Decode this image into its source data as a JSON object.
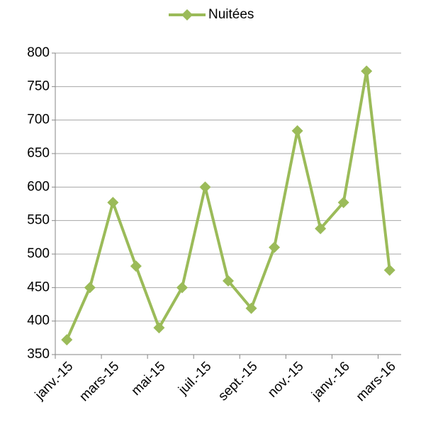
{
  "chart_data": {
    "type": "line",
    "categories": [
      "janv.-15",
      null,
      "mars-15",
      null,
      "mai-15",
      null,
      "juil.-15",
      null,
      "sept.-15",
      null,
      "nov.-15",
      null,
      "janv.-16",
      null,
      "mars-16"
    ],
    "series": [
      {
        "name": "Nuitées",
        "color": "#9bbb59",
        "values": [
          372,
          450,
          577,
          482,
          390,
          450,
          600,
          460,
          419,
          510,
          684,
          538,
          577,
          773,
          476
        ]
      }
    ],
    "ylim": [
      350,
      800
    ],
    "yticks": [
      350,
      400,
      450,
      500,
      550,
      600,
      650,
      700,
      750,
      800
    ],
    "grid": true,
    "legend": "top"
  }
}
